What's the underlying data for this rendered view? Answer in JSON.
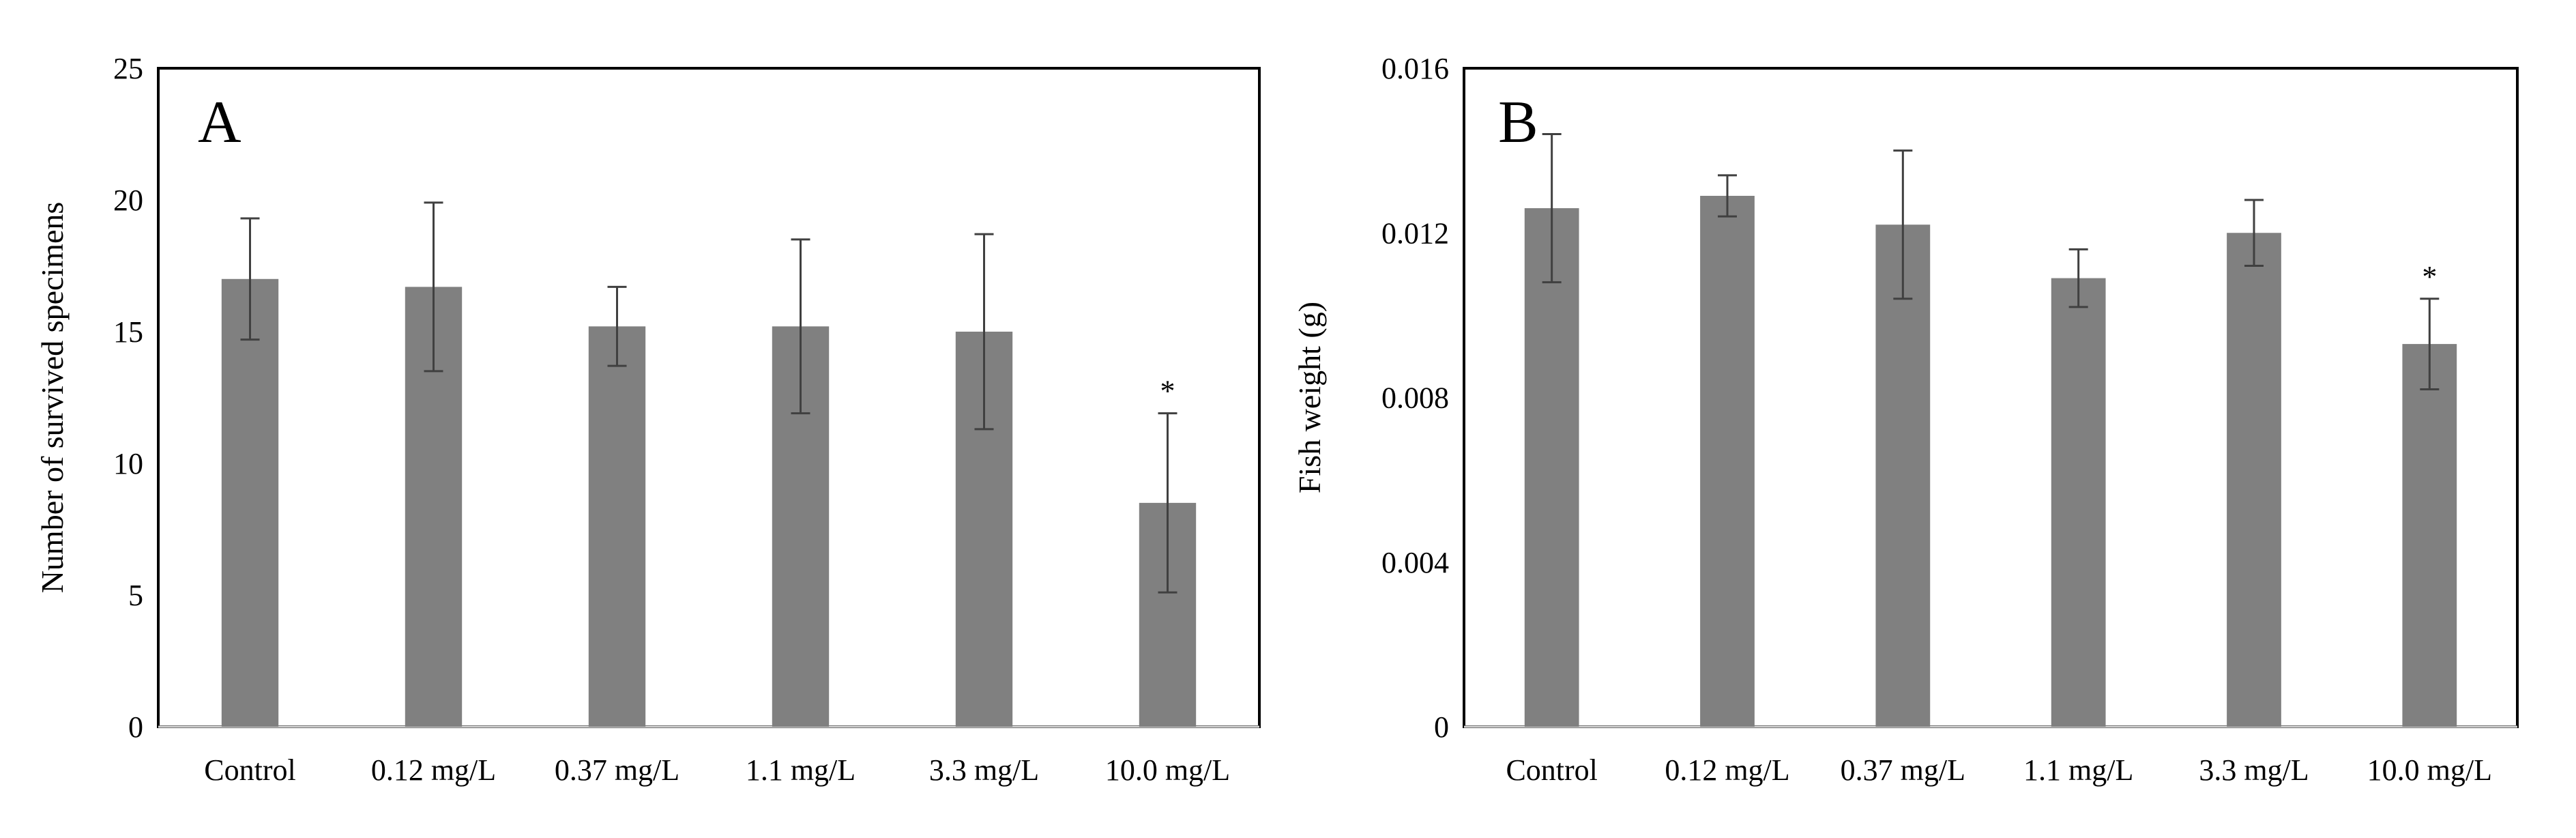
{
  "colors": {
    "bar": "#808080",
    "error": "#404040",
    "frame": "#000000",
    "background": "#ffffff"
  },
  "chart_data": [
    {
      "type": "bar",
      "panel": "A",
      "categories": [
        "Control",
        "0.12 mg/L",
        "0.37 mg/L",
        "1.1 mg/L",
        "3.3 mg/L",
        "10.0 mg/L"
      ],
      "values": [
        17.0,
        16.7,
        15.2,
        15.2,
        15.0,
        8.5
      ],
      "errors": [
        2.3,
        3.2,
        1.5,
        3.3,
        3.7,
        3.4
      ],
      "significance": [
        "",
        "",
        "",
        "",
        "",
        "*"
      ],
      "xlabel": "",
      "ylabel": "Number of survived specimens",
      "ylim": [
        0,
        25
      ],
      "yticks": [
        0,
        5,
        10,
        15,
        20,
        25
      ],
      "ytick_labels": [
        "0",
        "5",
        "10",
        "15",
        "20",
        "25"
      ],
      "grid": false
    },
    {
      "type": "bar",
      "panel": "B",
      "categories": [
        "Control",
        "0.12 mg/L",
        "0.37 mg/L",
        "1.1 mg/L",
        "3.3 mg/L",
        "10.0 mg/L"
      ],
      "values": [
        0.0126,
        0.0129,
        0.0122,
        0.0109,
        0.012,
        0.0093
      ],
      "errors": [
        0.0018,
        0.0005,
        0.0018,
        0.0007,
        0.0008,
        0.0011
      ],
      "significance": [
        "",
        "",
        "",
        "",
        "",
        "*"
      ],
      "xlabel": "",
      "ylabel": "Fish weight (g)",
      "ylim": [
        0,
        0.016
      ],
      "yticks": [
        0,
        0.004,
        0.008,
        0.012,
        0.016
      ],
      "ytick_labels": [
        "0",
        "0.004",
        "0.008",
        "0.012",
        "0.016"
      ],
      "grid": false
    }
  ]
}
